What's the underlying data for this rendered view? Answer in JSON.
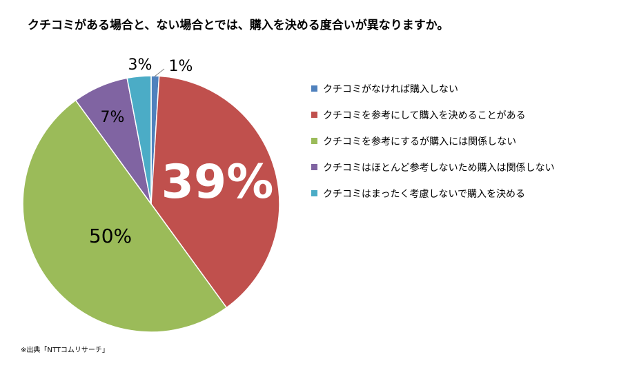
{
  "chart_data": {
    "type": "pie",
    "title": "クチコミがある場合と、ない場合とでは、購入を決める度合いが異なりますか。",
    "source_note": "※出典「NTTコムリサーチ」",
    "legend_position": "right",
    "slices": [
      {
        "label": "クチコミがなければ購入しない",
        "value": 1,
        "data_label": "1%",
        "color": "#4f81bd"
      },
      {
        "label": "クチコミを参考にして購入を決めることがある",
        "value": 39,
        "data_label": "39%",
        "color": "#c0504d"
      },
      {
        "label": "クチコミを参考にするが購入には関係しない",
        "value": 50,
        "data_label": "50%",
        "color": "#9bbb59"
      },
      {
        "label": "クチコミはほとんど参考しないため購入は関係しない",
        "value": 7,
        "data_label": "7%",
        "color": "#8064a2"
      },
      {
        "label": "クチコミはまったく考慮しないで購入を決める",
        "value": 3,
        "data_label": "3%",
        "color": "#4bacc6"
      }
    ]
  }
}
